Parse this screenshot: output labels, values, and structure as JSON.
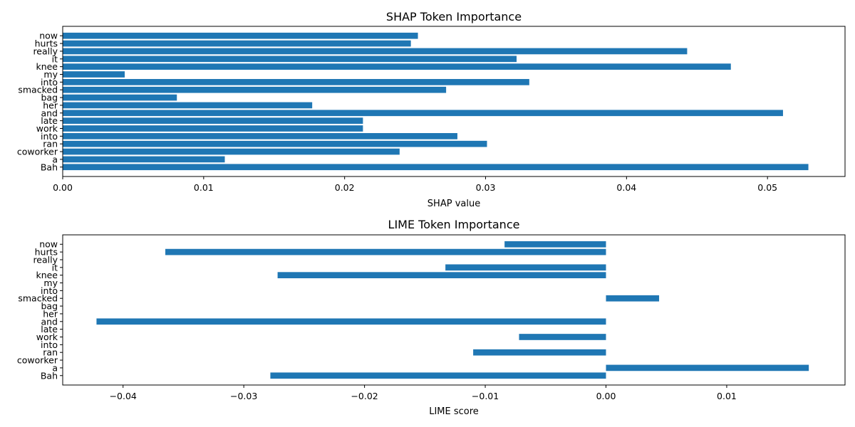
{
  "chart_data": [
    {
      "type": "bar",
      "orientation": "horizontal",
      "title": "SHAP Token Importance",
      "xlabel": "SHAP value",
      "ylabel": "",
      "xlim": [
        0,
        0.0555
      ],
      "xticks": [
        0,
        0.01,
        0.02,
        0.03,
        0.04,
        0.05
      ],
      "xtick_labels": [
        "0.00",
        "0.01",
        "0.02",
        "0.03",
        "0.04",
        "0.05"
      ],
      "categories": [
        "Bah",
        "a",
        "coworker",
        "ran",
        "into",
        "work",
        "late",
        "and",
        "her",
        "bag",
        "smacked",
        "into",
        "my",
        "knee",
        "it",
        "really",
        "hurts",
        "now"
      ],
      "values": [
        0.0529,
        0.0115,
        0.0239,
        0.0301,
        0.028,
        0.0213,
        0.0213,
        0.0511,
        0.0177,
        0.0081,
        0.0272,
        0.0331,
        0.0044,
        0.0474,
        0.0322,
        0.0443,
        0.0247,
        0.0252
      ],
      "bar_color": "#1f77b4",
      "grid": false
    },
    {
      "type": "bar",
      "orientation": "horizontal",
      "title": "LIME Token Importance",
      "xlabel": "LIME score",
      "ylabel": "",
      "xlim": [
        -0.045,
        0.0198
      ],
      "xticks": [
        -0.04,
        -0.03,
        -0.02,
        -0.01,
        0.0,
        0.01
      ],
      "xtick_labels": [
        "−0.04",
        "−0.03",
        "−0.02",
        "−0.01",
        "0.00",
        "0.01"
      ],
      "categories": [
        "Bah",
        "a",
        "coworker",
        "ran",
        "into",
        "work",
        "late",
        "and",
        "her",
        "bag",
        "smacked",
        "into",
        "my",
        "knee",
        "it",
        "really",
        "hurts",
        "now"
      ],
      "values": [
        -0.0278,
        0.0168,
        0,
        -0.011,
        0,
        -0.0072,
        0,
        -0.0422,
        0,
        0,
        0.0044,
        0,
        0,
        -0.0272,
        -0.0133,
        0,
        -0.0365,
        -0.0084
      ],
      "bar_color": "#1f77b4",
      "grid": false
    }
  ]
}
